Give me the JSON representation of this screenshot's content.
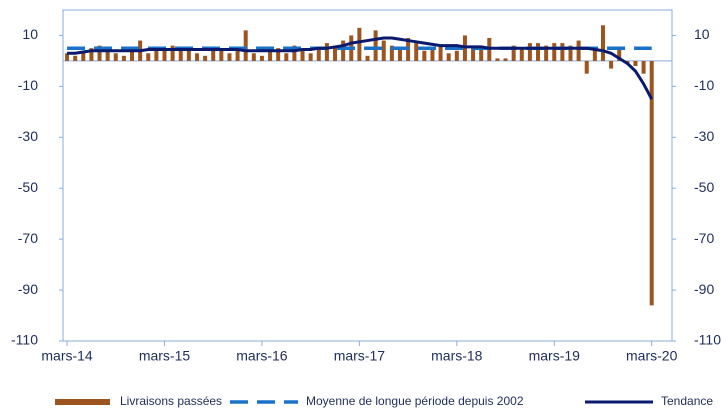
{
  "chart_data": {
    "type": "bar",
    "categories": [
      "mars-14",
      null,
      null,
      null,
      null,
      null,
      null,
      null,
      null,
      null,
      null,
      null,
      "mars-15",
      null,
      null,
      null,
      null,
      null,
      null,
      null,
      null,
      null,
      null,
      null,
      "mars-16",
      null,
      null,
      null,
      null,
      null,
      null,
      null,
      null,
      null,
      null,
      null,
      "mars-17",
      null,
      null,
      null,
      null,
      null,
      null,
      null,
      null,
      null,
      null,
      null,
      "mars-18",
      null,
      null,
      null,
      null,
      null,
      null,
      null,
      null,
      null,
      null,
      null,
      "mars-19",
      null,
      null,
      null,
      null,
      null,
      null,
      null,
      null,
      null,
      null,
      null,
      "mars-20",
      null,
      null
    ],
    "series": [
      {
        "name": "Livraisons passées",
        "type": "bar",
        "color": "#9c5420",
        "values": [
          3,
          2,
          4,
          5,
          6,
          4,
          3,
          2,
          5,
          8,
          3,
          4,
          5,
          6,
          4,
          5,
          3,
          2,
          4,
          5,
          3,
          4,
          12,
          3,
          2,
          4,
          5,
          3,
          6,
          4,
          3,
          5,
          7,
          6,
          8,
          10,
          13,
          2,
          12,
          8,
          6,
          5,
          9,
          7,
          4,
          5,
          6,
          3,
          4,
          10,
          5,
          6,
          9,
          1,
          1,
          6,
          5,
          7,
          7,
          6,
          7,
          7,
          6,
          8,
          -5,
          5,
          14,
          -3,
          5,
          -1,
          -2,
          -5,
          -96,
          null,
          null
        ]
      },
      {
        "name": "Moyenne de longue période depuis 2002",
        "type": "dashed",
        "color": "#1a72c8",
        "values": [
          5,
          5,
          5,
          5,
          5,
          5,
          5,
          5,
          5,
          5,
          5,
          5,
          5,
          5,
          5,
          5,
          5,
          5,
          5,
          5,
          5,
          5,
          5,
          5,
          5,
          5,
          5,
          5,
          5,
          5,
          5,
          5,
          5,
          5,
          5,
          5,
          5,
          5,
          5,
          5,
          5,
          5,
          5,
          5,
          5,
          5,
          5,
          5,
          5,
          5,
          5,
          5,
          5,
          5,
          5,
          5,
          5,
          5,
          5,
          5,
          5,
          5,
          5,
          5,
          5,
          5,
          5,
          5,
          5,
          5,
          5,
          5,
          5,
          null,
          null
        ]
      },
      {
        "name": "Tendance",
        "type": "line",
        "color": "#0a1a6e",
        "values": [
          3,
          3,
          3.5,
          4,
          4,
          4,
          4,
          4,
          4,
          4,
          4.5,
          4.5,
          4.5,
          4.5,
          4.5,
          4.5,
          4.5,
          4.5,
          4.5,
          4.5,
          4.5,
          4.5,
          4,
          4,
          4,
          4,
          4,
          4,
          4,
          4.5,
          4.5,
          5,
          5,
          5.5,
          6,
          7,
          7.5,
          8,
          8.5,
          9,
          9,
          8.5,
          8,
          7.5,
          7,
          6.5,
          6,
          6,
          6,
          5.5,
          5.5,
          5.5,
          5,
          5,
          5,
          5,
          5,
          5,
          5,
          5,
          5,
          5,
          5,
          5,
          5,
          4.5,
          4,
          3,
          1,
          -1,
          -4,
          -9,
          -15,
          null,
          null
        ]
      }
    ],
    "ylim": [
      -110,
      20
    ],
    "yticks": [
      -110,
      -90,
      -70,
      -50,
      -30,
      -10,
      10
    ],
    "y2lim": [
      -110,
      20
    ],
    "y2ticks": [
      -110,
      -90,
      -70,
      -50,
      -30,
      -10,
      10
    ],
    "legend": "bottom"
  }
}
